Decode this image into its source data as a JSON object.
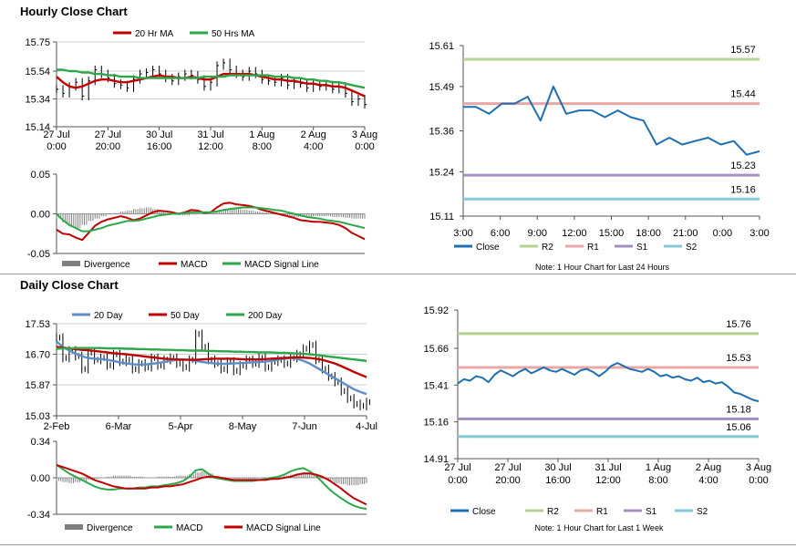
{
  "sections": {
    "hourly_title": "Hourly Close Chart",
    "daily_title": "Daily Close Chart"
  },
  "chart_data": [
    {
      "id": "hourly-price",
      "type": "line",
      "title": "Hourly Close Chart",
      "x_tick_labels": [
        [
          "27 Jul",
          "0:00"
        ],
        [
          "27 Jul",
          "20:00"
        ],
        [
          "30 Jul",
          "16:00"
        ],
        [
          "31 Jul",
          "12:00"
        ],
        [
          "1 Aug",
          "8:00"
        ],
        [
          "2 Aug",
          "4:00"
        ],
        [
          "3 Aug",
          "0:00"
        ]
      ],
      "y_tick_labels": [
        "15.75",
        "15.54",
        "15.34",
        "15.14"
      ],
      "ylim": [
        15.14,
        15.75
      ],
      "legend": [
        "20 Hr MA",
        "50 Hrs MA"
      ],
      "series": [
        {
          "name": "Close",
          "color": "#000000",
          "values": [
            15.41,
            15.38,
            15.43,
            15.46,
            15.36,
            15.47,
            15.55,
            15.52,
            15.49,
            15.45,
            15.44,
            15.42,
            15.48,
            15.52,
            15.53,
            15.55,
            15.52,
            15.49,
            15.47,
            15.5,
            15.52,
            15.51,
            15.48,
            15.43,
            15.46,
            15.58,
            15.6,
            15.55,
            15.52,
            15.5,
            15.54,
            15.52,
            15.48,
            15.47,
            15.46,
            15.49,
            15.44,
            15.46,
            15.45,
            15.42,
            15.45,
            15.43,
            15.44,
            15.41,
            15.43,
            15.38,
            15.32,
            15.34,
            15.3
          ]
        },
        {
          "name": "20 Hr MA",
          "color": "#c00000",
          "values": [
            15.5,
            15.46,
            15.43,
            15.42,
            15.43,
            15.45,
            15.47,
            15.48,
            15.48,
            15.47,
            15.46,
            15.46,
            15.47,
            15.48,
            15.49,
            15.5,
            15.51,
            15.5,
            15.5,
            15.49,
            15.49,
            15.5,
            15.49,
            15.48,
            15.48,
            15.5,
            15.52,
            15.52,
            15.52,
            15.52,
            15.52,
            15.51,
            15.5,
            15.49,
            15.48,
            15.48,
            15.47,
            15.47,
            15.46,
            15.45,
            15.45,
            15.44,
            15.44,
            15.43,
            15.43,
            15.42,
            15.4,
            15.38,
            15.36
          ]
        },
        {
          "name": "50 Hrs MA",
          "color": "#2ca84a",
          "values": [
            15.55,
            15.55,
            15.54,
            15.54,
            15.53,
            15.53,
            15.52,
            15.52,
            15.51,
            15.51,
            15.5,
            15.5,
            15.5,
            15.49,
            15.49,
            15.49,
            15.49,
            15.49,
            15.49,
            15.49,
            15.49,
            15.49,
            15.49,
            15.5,
            15.5,
            15.5,
            15.5,
            15.51,
            15.51,
            15.51,
            15.51,
            15.51,
            15.51,
            15.51,
            15.5,
            15.5,
            15.5,
            15.49,
            15.49,
            15.48,
            15.48,
            15.47,
            15.47,
            15.46,
            15.46,
            15.45,
            15.44,
            15.43,
            15.42
          ]
        }
      ]
    },
    {
      "id": "hourly-macd",
      "type": "line",
      "y_tick_labels": [
        "0.05",
        "0.00",
        "-0.05"
      ],
      "ylim": [
        -0.05,
        0.05
      ],
      "legend": [
        "Divergence",
        "MACD",
        "MACD Signal Line"
      ],
      "series": [
        {
          "name": "Divergence",
          "color": "#7f7f7f",
          "values": [
            -0.005,
            -0.011,
            -0.016,
            -0.018,
            -0.014,
            -0.009,
            -0.006,
            -0.003,
            -0.001,
            0.001,
            0.003,
            0.004,
            0.006,
            0.007,
            0.008,
            0.006,
            0.003,
            0.001,
            -0.001,
            -0.002,
            -0.002,
            -0.001,
            0.0,
            0.001,
            0.002,
            0.004,
            0.006,
            0.007,
            0.006,
            0.005,
            0.004,
            0.003,
            0.002,
            0.001,
            -0.001,
            -0.002,
            -0.003,
            -0.004,
            -0.004,
            -0.004,
            -0.003,
            -0.003,
            -0.003,
            -0.004,
            -0.004,
            -0.005,
            -0.006,
            -0.006,
            -0.006
          ]
        },
        {
          "name": "MACD",
          "color": "#c00000",
          "values": [
            -0.02,
            -0.025,
            -0.026,
            -0.03,
            -0.033,
            -0.024,
            -0.015,
            -0.01,
            -0.007,
            -0.005,
            -0.003,
            -0.005,
            -0.008,
            -0.006,
            -0.002,
            0.002,
            0.004,
            0.003,
            0.002,
            0.0,
            0.002,
            0.005,
            0.004,
            0.001,
            0.002,
            0.008,
            0.013,
            0.014,
            0.012,
            0.011,
            0.01,
            0.008,
            0.005,
            0.003,
            0.001,
            -0.001,
            -0.003,
            -0.005,
            -0.008,
            -0.009,
            -0.01,
            -0.01,
            -0.011,
            -0.012,
            -0.014,
            -0.018,
            -0.024,
            -0.028,
            -0.032
          ]
        },
        {
          "name": "MACD Signal Line",
          "color": "#2ca84a",
          "values": [
            0.0,
            -0.008,
            -0.014,
            -0.018,
            -0.022,
            -0.022,
            -0.02,
            -0.018,
            -0.015,
            -0.013,
            -0.011,
            -0.009,
            -0.009,
            -0.008,
            -0.006,
            -0.004,
            -0.002,
            -0.001,
            0.0,
            0.0,
            0.001,
            0.002,
            0.002,
            0.002,
            0.002,
            0.003,
            0.005,
            0.006,
            0.007,
            0.008,
            0.008,
            0.008,
            0.007,
            0.006,
            0.005,
            0.004,
            0.002,
            0.0,
            -0.002,
            -0.004,
            -0.005,
            -0.006,
            -0.008,
            -0.009,
            -0.01,
            -0.012,
            -0.014,
            -0.016,
            -0.018
          ]
        }
      ]
    },
    {
      "id": "hourly-24h",
      "type": "line",
      "title": "Note: 1 Hour Chart for Last 24 Hours",
      "x_tick_labels": [
        "3:00",
        "6:00",
        "9:00",
        "12:00",
        "15:00",
        "18:00",
        "21:00",
        "0:00",
        "3:00"
      ],
      "y_tick_labels": [
        "15.61",
        "15.49",
        "15.36",
        "15.24",
        "15.11"
      ],
      "ylim": [
        15.11,
        15.61
      ],
      "levels": [
        {
          "name": "R2",
          "value": 15.57,
          "label": "15.57",
          "color": "#b5d38f"
        },
        {
          "name": "R1",
          "value": 15.44,
          "label": "15.44",
          "color": "#e8a7a4"
        },
        {
          "name": "S1",
          "value": 15.23,
          "label": "15.23",
          "color": "#a490c0"
        },
        {
          "name": "S2",
          "value": 15.16,
          "label": "15.16",
          "color": "#86c8d5"
        }
      ],
      "legend": [
        "Close",
        "R2",
        "R1",
        "S1",
        "S2"
      ],
      "series": [
        {
          "name": "Close",
          "color": "#1f6fb0",
          "values": [
            15.43,
            15.43,
            15.41,
            15.44,
            15.44,
            15.46,
            15.39,
            15.49,
            15.41,
            15.42,
            15.42,
            15.4,
            15.42,
            15.4,
            15.39,
            15.32,
            15.34,
            15.32,
            15.33,
            15.34,
            15.32,
            15.33,
            15.29,
            15.3
          ]
        }
      ]
    },
    {
      "id": "daily-price",
      "type": "line",
      "title": "Daily Close Chart",
      "x_tick_labels": [
        "2-Feb",
        "6-Mar",
        "5-Apr",
        "8-May",
        "7-Jun",
        "4-Jul"
      ],
      "y_tick_labels": [
        "17.53",
        "16.70",
        "15.87",
        "15.03"
      ],
      "ylim": [
        15.03,
        17.53
      ],
      "legend": [
        "20 Day",
        "50 Day",
        "200 Day"
      ],
      "series": [
        {
          "name": "Close",
          "color": "#000000",
          "values": [
            17.15,
            16.6,
            16.8,
            16.65,
            16.3,
            16.75,
            16.55,
            16.6,
            16.4,
            16.7,
            16.5,
            16.55,
            16.3,
            16.45,
            16.35,
            16.6,
            16.4,
            16.55,
            16.6,
            16.45,
            16.35,
            16.55,
            17.25,
            16.9,
            16.55,
            16.45,
            16.3,
            16.5,
            16.25,
            16.4,
            16.55,
            16.45,
            16.6,
            16.35,
            16.5,
            16.55,
            16.45,
            16.6,
            16.7,
            16.85,
            16.95,
            16.55,
            16.3,
            16.1,
            15.95,
            15.7,
            15.5,
            15.35,
            15.3,
            15.4
          ]
        },
        {
          "name": "20 Day",
          "color": "#5b8fc9",
          "values": [
            17.05,
            16.9,
            16.8,
            16.72,
            16.65,
            16.6,
            16.58,
            16.57,
            16.55,
            16.52,
            16.48,
            16.45,
            16.43,
            16.42,
            16.42,
            16.44,
            16.46,
            16.49,
            16.52,
            16.55,
            16.56,
            16.55,
            16.52,
            16.49,
            16.47,
            16.45,
            16.44,
            16.44,
            16.45,
            16.46,
            16.47,
            16.48,
            16.49,
            16.5,
            16.52,
            16.55,
            16.58,
            16.6,
            16.58,
            16.52,
            16.45,
            16.35,
            16.25,
            16.15,
            16.05,
            15.95,
            15.85,
            15.75,
            15.68,
            15.62
          ]
        },
        {
          "name": "50 Day",
          "color": "#c00000",
          "values": [
            16.9,
            16.88,
            16.86,
            16.84,
            16.82,
            16.81,
            16.79,
            16.77,
            16.75,
            16.73,
            16.71,
            16.7,
            16.68,
            16.66,
            16.64,
            16.62,
            16.6,
            16.58,
            16.57,
            16.56,
            16.55,
            16.55,
            16.55,
            16.56,
            16.57,
            16.58,
            16.58,
            16.58,
            16.58,
            16.57,
            16.56,
            16.56,
            16.56,
            16.57,
            16.58,
            16.59,
            16.6,
            16.61,
            16.62,
            16.61,
            16.6,
            16.58,
            16.55,
            16.5,
            16.45,
            16.38,
            16.3,
            16.22,
            16.15,
            16.08
          ]
        },
        {
          "name": "200 Day",
          "color": "#2ca84a",
          "values": [
            16.85,
            16.86,
            16.86,
            16.87,
            16.87,
            16.87,
            16.87,
            16.87,
            16.86,
            16.86,
            16.86,
            16.85,
            16.85,
            16.84,
            16.84,
            16.83,
            16.83,
            16.82,
            16.82,
            16.81,
            16.81,
            16.8,
            16.8,
            16.8,
            16.79,
            16.79,
            16.78,
            16.78,
            16.77,
            16.77,
            16.76,
            16.76,
            16.75,
            16.75,
            16.75,
            16.74,
            16.74,
            16.73,
            16.72,
            16.71,
            16.7,
            16.68,
            16.66,
            16.64,
            16.62,
            16.6,
            16.58,
            16.56,
            16.54,
            16.52
          ]
        }
      ]
    },
    {
      "id": "daily-macd",
      "type": "line",
      "y_tick_labels": [
        "0.34",
        "0.00",
        "-0.34"
      ],
      "ylim": [
        -0.34,
        0.34
      ],
      "legend": [
        "Divergence",
        "MACD",
        "MACD Signal Line"
      ],
      "series": [
        {
          "name": "Divergence",
          "color": "#7f7f7f",
          "values": [
            -0.03,
            -0.04,
            -0.05,
            -0.04,
            -0.03,
            -0.02,
            -0.01,
            0.0,
            0.01,
            0.02,
            0.02,
            0.02,
            0.01,
            0.01,
            0.0,
            0.0,
            0.01,
            0.01,
            0.01,
            0.02,
            0.02,
            0.03,
            0.05,
            0.06,
            0.04,
            0.02,
            0.01,
            0.0,
            -0.01,
            -0.01,
            -0.01,
            -0.01,
            0.0,
            0.0,
            0.01,
            0.01,
            0.02,
            0.03,
            0.04,
            0.05,
            0.04,
            0.02,
            -0.01,
            -0.03,
            -0.05,
            -0.06,
            -0.07,
            -0.07,
            -0.06,
            -0.05
          ]
        },
        {
          "name": "MACD",
          "color": "#2ca84a",
          "values": [
            0.12,
            0.08,
            0.04,
            0.01,
            -0.02,
            -0.05,
            -0.08,
            -0.1,
            -0.11,
            -0.11,
            -0.1,
            -0.1,
            -0.1,
            -0.09,
            -0.09,
            -0.08,
            -0.08,
            -0.07,
            -0.06,
            -0.05,
            -0.03,
            0.01,
            0.07,
            0.08,
            0.04,
            0.0,
            -0.01,
            -0.02,
            -0.03,
            -0.03,
            -0.03,
            -0.03,
            -0.02,
            -0.01,
            0.0,
            0.01,
            0.03,
            0.06,
            0.08,
            0.09,
            0.06,
            0.02,
            -0.04,
            -0.1,
            -0.15,
            -0.19,
            -0.23,
            -0.26,
            -0.28,
            -0.29
          ]
        },
        {
          "name": "MACD Signal Line",
          "color": "#c00000",
          "values": [
            0.12,
            0.1,
            0.08,
            0.06,
            0.04,
            0.01,
            -0.02,
            -0.04,
            -0.06,
            -0.08,
            -0.09,
            -0.1,
            -0.1,
            -0.1,
            -0.1,
            -0.09,
            -0.09,
            -0.08,
            -0.08,
            -0.07,
            -0.06,
            -0.04,
            -0.02,
            0.0,
            0.01,
            0.01,
            0.0,
            -0.01,
            -0.02,
            -0.02,
            -0.02,
            -0.02,
            -0.02,
            -0.02,
            -0.01,
            -0.01,
            0.0,
            0.01,
            0.03,
            0.04,
            0.04,
            0.03,
            0.01,
            -0.02,
            -0.06,
            -0.1,
            -0.15,
            -0.19,
            -0.22,
            -0.25
          ]
        }
      ]
    },
    {
      "id": "daily-week",
      "type": "line",
      "title": "Note: 1 Hour Chart for Last 1 Week",
      "x_tick_labels": [
        [
          "27 Jul",
          "0:00"
        ],
        [
          "27 Jul",
          "20:00"
        ],
        [
          "30 Jul",
          "16:00"
        ],
        [
          "31 Jul",
          "12:00"
        ],
        [
          "1 Aug",
          "8:00"
        ],
        [
          "2 Aug",
          "4:00"
        ],
        [
          "3 Aug",
          "0:00"
        ]
      ],
      "y_tick_labels": [
        "15.92",
        "15.66",
        "15.41",
        "15.16",
        "14.91"
      ],
      "ylim": [
        14.91,
        15.92
      ],
      "levels": [
        {
          "name": "R2",
          "value": 15.76,
          "label": "15.76",
          "color": "#b5d38f"
        },
        {
          "name": "R1",
          "value": 15.53,
          "label": "15.53",
          "color": "#e8a7a4"
        },
        {
          "name": "S1",
          "value": 15.18,
          "label": "15.18",
          "color": "#a490c0"
        },
        {
          "name": "S2",
          "value": 15.06,
          "label": "15.06",
          "color": "#86c8d5"
        }
      ],
      "legend": [
        "Close",
        "R2",
        "R1",
        "S1",
        "S2"
      ],
      "series": [
        {
          "name": "Close",
          "color": "#1f6fb0",
          "values": [
            15.42,
            15.45,
            15.44,
            15.47,
            15.46,
            15.43,
            15.48,
            15.51,
            15.49,
            15.47,
            15.5,
            15.52,
            15.49,
            15.51,
            15.53,
            15.51,
            15.5,
            15.52,
            15.5,
            15.48,
            15.51,
            15.52,
            15.5,
            15.47,
            15.5,
            15.54,
            15.56,
            15.54,
            15.52,
            15.51,
            15.5,
            15.52,
            15.5,
            15.47,
            15.48,
            15.46,
            15.47,
            15.45,
            15.44,
            15.46,
            15.43,
            15.44,
            15.42,
            15.43,
            15.4,
            15.36,
            15.35,
            15.33,
            15.31,
            15.3
          ]
        }
      ]
    }
  ]
}
